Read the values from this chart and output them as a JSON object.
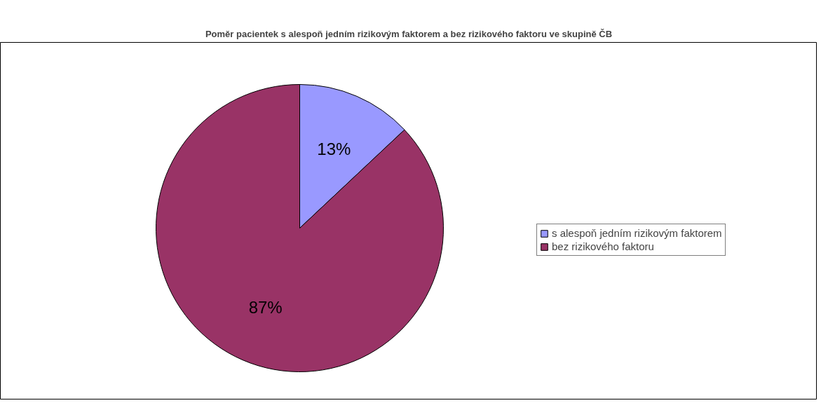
{
  "chart_data": {
    "type": "pie",
    "title": "Poměr pacientek s alespoň jedním rizikovým faktorem a bez rizikového faktoru ve skupině ČB",
    "categories": [
      "s alespoň jedním rizikovým faktorem",
      "bez rizikového faktoru"
    ],
    "values": [
      13,
      87
    ],
    "colors": [
      "#9999ff",
      "#993366"
    ],
    "value_labels": [
      "13%",
      "87%"
    ],
    "legend": "right"
  }
}
